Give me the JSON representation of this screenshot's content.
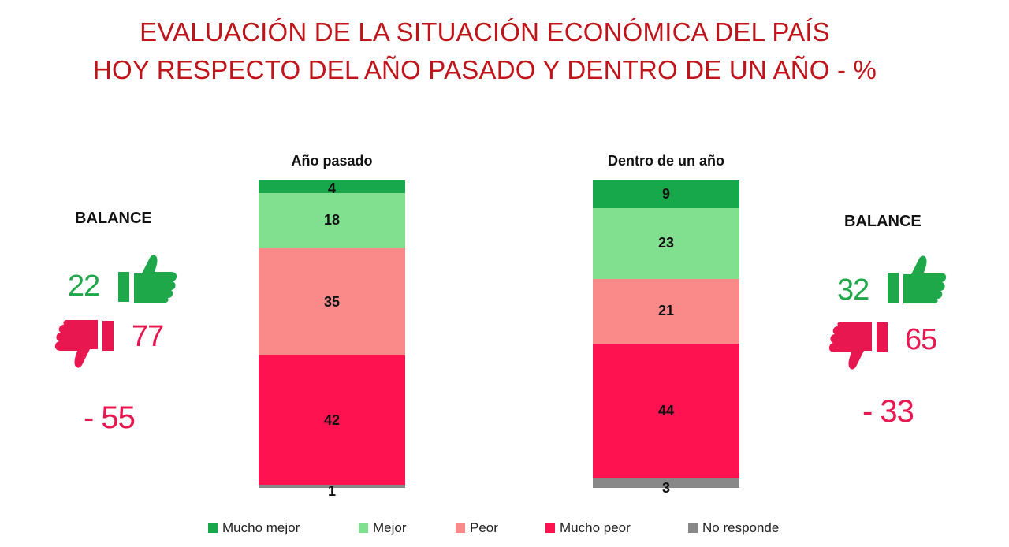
{
  "title": {
    "line1": "EVALUACIÓN DE LA SITUACIÓN ECONÓMICA DEL PAÍS",
    "line2": "HOY RESPECTO DEL AÑO PASADO Y DENTRO DE UN AÑO - %"
  },
  "colors": {
    "mucho_mejor": "#18a84c",
    "mejor": "#80e090",
    "peor": "#fa8a8a",
    "mucho_peor": "#ff124f",
    "no_responde": "#888888",
    "positive_text": "#1fa84a",
    "negative_text": "#e8174f",
    "title": "#c0141b"
  },
  "chart_data": {
    "type": "bar",
    "stacked": true,
    "normalized": true,
    "categories": [
      "Año pasado",
      "Dentro de un año"
    ],
    "series": [
      {
        "name": "Mucho mejor",
        "values": [
          4,
          9
        ]
      },
      {
        "name": "Mejor",
        "values": [
          18,
          23
        ]
      },
      {
        "name": "Peor",
        "values": [
          35,
          21
        ]
      },
      {
        "name": "Mucho peor",
        "values": [
          42,
          44
        ]
      },
      {
        "name": "No responde",
        "values": [
          1,
          3
        ]
      }
    ],
    "title": "EVALUACIÓN DE LA SITUACIÓN ECONÓMICA DEL PAÍS HOY RESPECTO DEL AÑO PASADO Y DENTRO DE UN AÑO - %",
    "legend": "bottom"
  },
  "balance_left": {
    "label": "BALANCE",
    "positive": "22",
    "negative": "77",
    "net": "- 55",
    "up_icon": "thumbs-up-icon",
    "down_icon": "thumbs-down-icon"
  },
  "balance_right": {
    "label": "BALANCE",
    "positive": "32",
    "negative": "65",
    "net": "- 33",
    "up_icon": "thumbs-up-icon",
    "down_icon": "thumbs-down-icon"
  },
  "legend": [
    {
      "label": "Mucho mejor",
      "color": "#18a84c"
    },
    {
      "label": "Mejor",
      "color": "#80e090"
    },
    {
      "label": "Peor",
      "color": "#fa8a8a"
    },
    {
      "label": "Mucho peor",
      "color": "#ff124f"
    },
    {
      "label": "No responde",
      "color": "#888888"
    }
  ]
}
